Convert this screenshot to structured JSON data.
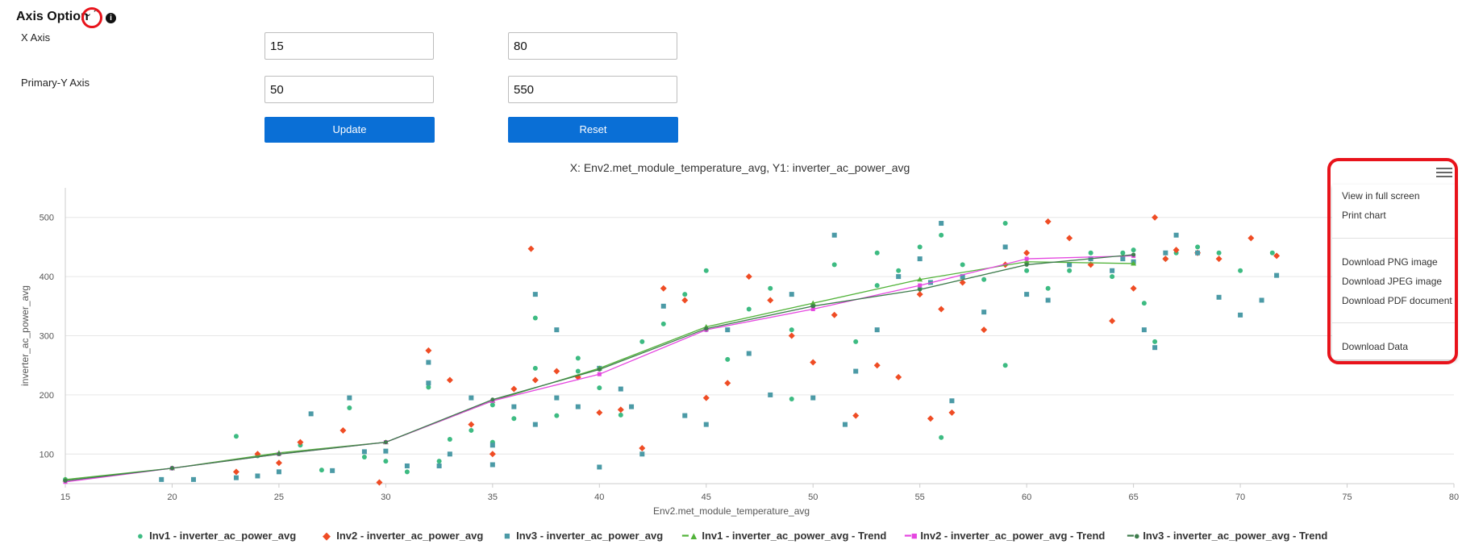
{
  "axis_options": {
    "title": "Axis Option",
    "collapse_glyph": "⌄⌃",
    "info_glyph": "i",
    "x_label": "X Axis",
    "y_label": "Primary-Y Axis",
    "x_min": "15",
    "x_max": "80",
    "y_min": "50",
    "y_max": "550",
    "update_label": "Update",
    "reset_label": "Reset"
  },
  "menu": {
    "items": [
      "View in full screen",
      "Print chart",
      "Download PNG image",
      "Download JPEG image",
      "Download PDF document",
      "Download Data"
    ]
  },
  "colors": {
    "inv1": "#3dbb82",
    "inv2": "#ef4c24",
    "inv3": "#4b9aa6",
    "trend1": "#52b33a",
    "trend2": "#e546e0",
    "trend3": "#3e7c4d",
    "button": "#0a6fd6",
    "highlight": "#e8131b"
  },
  "chart_data": {
    "type": "scatter",
    "title": "X: Env2.met_module_temperature_avg, Y1: inverter_ac_power_avg",
    "xlabel": "Env2.met_module_temperature_avg",
    "ylabel": "inverter_ac_power_avg",
    "xlim": [
      15,
      80
    ],
    "ylim": [
      50,
      550
    ],
    "x_ticks": [
      "15",
      "20",
      "25",
      "30",
      "35",
      "40",
      "45",
      "50",
      "55",
      "60",
      "65",
      "70",
      "75",
      "80"
    ],
    "y_ticks": [
      "100",
      "200",
      "300",
      "400",
      "500"
    ],
    "grid": true,
    "legend_position": "bottom",
    "series": [
      {
        "name": "Inv1 - inverter_ac_power_avg",
        "marker": "circle",
        "points": [
          [
            15,
            57
          ],
          [
            20,
            76
          ],
          [
            23,
            130
          ],
          [
            24,
            97
          ],
          [
            26,
            115
          ],
          [
            27,
            73
          ],
          [
            28.3,
            178
          ],
          [
            29,
            95
          ],
          [
            30,
            88
          ],
          [
            31,
            70
          ],
          [
            32,
            213
          ],
          [
            32.5,
            88
          ],
          [
            33,
            125
          ],
          [
            34,
            140
          ],
          [
            35,
            120
          ],
          [
            35,
            183
          ],
          [
            36,
            160
          ],
          [
            37,
            330
          ],
          [
            37,
            245
          ],
          [
            38,
            165
          ],
          [
            39,
            240
          ],
          [
            39,
            262
          ],
          [
            40,
            212
          ],
          [
            41,
            166
          ],
          [
            42,
            290
          ],
          [
            43,
            320
          ],
          [
            44,
            370
          ],
          [
            45,
            310
          ],
          [
            45,
            410
          ],
          [
            46,
            260
          ],
          [
            47,
            345
          ],
          [
            48,
            380
          ],
          [
            49,
            193
          ],
          [
            49,
            310
          ],
          [
            50,
            350
          ],
          [
            51,
            420
          ],
          [
            52,
            290
          ],
          [
            53,
            440
          ],
          [
            53,
            385
          ],
          [
            54,
            410
          ],
          [
            55,
            450
          ],
          [
            55,
            380
          ],
          [
            56,
            470
          ],
          [
            56,
            128
          ],
          [
            57,
            420
          ],
          [
            58,
            395
          ],
          [
            59,
            250
          ],
          [
            59,
            490
          ],
          [
            60,
            410
          ],
          [
            61,
            380
          ],
          [
            62,
            410
          ],
          [
            63,
            440
          ],
          [
            64,
            400
          ],
          [
            64.5,
            440
          ],
          [
            65,
            445
          ],
          [
            65.5,
            355
          ],
          [
            66,
            290
          ],
          [
            66.5,
            430
          ],
          [
            67,
            440
          ],
          [
            68,
            450
          ],
          [
            69,
            440
          ],
          [
            70,
            410
          ],
          [
            71.5,
            440
          ]
        ]
      },
      {
        "name": "Inv2 - inverter_ac_power_avg",
        "marker": "diamond",
        "points": [
          [
            23,
            70
          ],
          [
            24,
            100
          ],
          [
            25,
            85
          ],
          [
            26,
            120
          ],
          [
            28,
            140
          ],
          [
            29.7,
            52
          ],
          [
            32,
            275
          ],
          [
            33,
            225
          ],
          [
            34,
            150
          ],
          [
            35,
            100
          ],
          [
            36,
            210
          ],
          [
            36.8,
            447
          ],
          [
            37,
            225
          ],
          [
            38,
            240
          ],
          [
            39,
            230
          ],
          [
            40,
            170
          ],
          [
            41,
            175
          ],
          [
            42,
            110
          ],
          [
            43,
            380
          ],
          [
            44,
            360
          ],
          [
            45,
            195
          ],
          [
            46,
            220
          ],
          [
            47,
            400
          ],
          [
            48,
            360
          ],
          [
            49,
            300
          ],
          [
            50,
            255
          ],
          [
            51,
            335
          ],
          [
            52,
            165
          ],
          [
            53,
            250
          ],
          [
            54,
            230
          ],
          [
            55,
            370
          ],
          [
            55.5,
            160
          ],
          [
            56,
            345
          ],
          [
            56.5,
            170
          ],
          [
            57,
            390
          ],
          [
            58,
            310
          ],
          [
            59,
            420
          ],
          [
            60,
            440
          ],
          [
            61,
            493
          ],
          [
            62,
            465
          ],
          [
            63,
            420
          ],
          [
            64,
            325
          ],
          [
            65,
            380
          ],
          [
            66,
            500
          ],
          [
            66.5,
            430
          ],
          [
            67,
            445
          ],
          [
            68,
            440
          ],
          [
            69,
            430
          ],
          [
            70.5,
            465
          ],
          [
            71.7,
            435
          ]
        ]
      },
      {
        "name": "Inv3 - inverter_ac_power_avg",
        "marker": "square",
        "points": [
          [
            19.5,
            57
          ],
          [
            21,
            57
          ],
          [
            23,
            60
          ],
          [
            24,
            63
          ],
          [
            25,
            70
          ],
          [
            26.5,
            168
          ],
          [
            27.5,
            72
          ],
          [
            28.3,
            195
          ],
          [
            29,
            104
          ],
          [
            30,
            105
          ],
          [
            31,
            80
          ],
          [
            32,
            255
          ],
          [
            32,
            220
          ],
          [
            32.5,
            80
          ],
          [
            33,
            100
          ],
          [
            34,
            195
          ],
          [
            35,
            115
          ],
          [
            35,
            82
          ],
          [
            36,
            180
          ],
          [
            37,
            370
          ],
          [
            37,
            150
          ],
          [
            38,
            310
          ],
          [
            38,
            195
          ],
          [
            39,
            180
          ],
          [
            40,
            245
          ],
          [
            40,
            78
          ],
          [
            41,
            210
          ],
          [
            41.5,
            180
          ],
          [
            42,
            100
          ],
          [
            43,
            350
          ],
          [
            44,
            165
          ],
          [
            45,
            150
          ],
          [
            46,
            310
          ],
          [
            47,
            270
          ],
          [
            48,
            200
          ],
          [
            49,
            370
          ],
          [
            50,
            195
          ],
          [
            51,
            470
          ],
          [
            51.5,
            150
          ],
          [
            52,
            240
          ],
          [
            53,
            310
          ],
          [
            54,
            400
          ],
          [
            55,
            430
          ],
          [
            55.5,
            390
          ],
          [
            56,
            490
          ],
          [
            56.5,
            190
          ],
          [
            57,
            400
          ],
          [
            58,
            340
          ],
          [
            59,
            450
          ],
          [
            60,
            370
          ],
          [
            61,
            360
          ],
          [
            62,
            420
          ],
          [
            63,
            430
          ],
          [
            64,
            410
          ],
          [
            64.5,
            430
          ],
          [
            65,
            425
          ],
          [
            65.5,
            310
          ],
          [
            66,
            280
          ],
          [
            66.5,
            440
          ],
          [
            67,
            470
          ],
          [
            68,
            440
          ],
          [
            69,
            365
          ],
          [
            70,
            335
          ],
          [
            71,
            360
          ],
          [
            71.7,
            402
          ]
        ]
      },
      {
        "name": "Inv1 - inverter_ac_power_avg - Trend",
        "marker": "triangle",
        "line": true,
        "points": [
          [
            15,
            57
          ],
          [
            20,
            76
          ],
          [
            25,
            102
          ],
          [
            30,
            120
          ],
          [
            35,
            190
          ],
          [
            40,
            245
          ],
          [
            45,
            315
          ],
          [
            50,
            355
          ],
          [
            55,
            395
          ],
          [
            60,
            425
          ],
          [
            65,
            422
          ]
        ]
      },
      {
        "name": "Inv2 - inverter_ac_power_avg - Trend",
        "marker": "square",
        "line": true,
        "points": [
          [
            15,
            53
          ],
          [
            20,
            76
          ],
          [
            25,
            100
          ],
          [
            30,
            120
          ],
          [
            35,
            190
          ],
          [
            40,
            235
          ],
          [
            45,
            310
          ],
          [
            50,
            345
          ],
          [
            55,
            385
          ],
          [
            60,
            430
          ],
          [
            65,
            435
          ]
        ]
      },
      {
        "name": "Inv3 - inverter_ac_power_avg - Trend",
        "marker": "circle",
        "line": true,
        "points": [
          [
            15,
            55
          ],
          [
            20,
            76
          ],
          [
            25,
            100
          ],
          [
            30,
            120
          ],
          [
            35,
            192
          ],
          [
            40,
            243
          ],
          [
            45,
            312
          ],
          [
            50,
            350
          ],
          [
            55,
            378
          ],
          [
            60,
            420
          ],
          [
            65,
            437
          ]
        ]
      }
    ]
  }
}
